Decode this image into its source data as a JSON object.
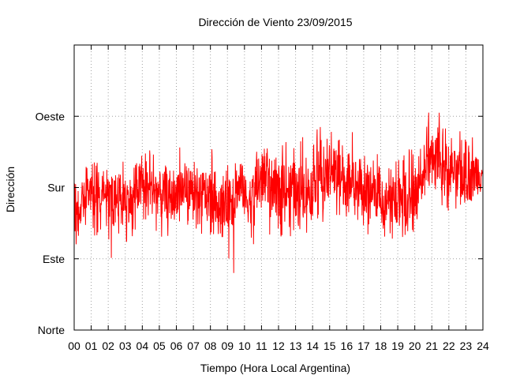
{
  "chart_data": {
    "type": "line",
    "title": "Dirección de Viento 23/09/2015",
    "xlabel": "Tiempo (Hora Local Argentina)",
    "ylabel": "Dirección",
    "x_ticks": [
      "00",
      "01",
      "02",
      "03",
      "04",
      "05",
      "06",
      "07",
      "08",
      "09",
      "10",
      "11",
      "12",
      "13",
      "14",
      "15",
      "16",
      "17",
      "18",
      "19",
      "20",
      "21",
      "22",
      "23",
      "24"
    ],
    "xlim": [
      0,
      24
    ],
    "y_ticks": [
      {
        "label": "Norte",
        "value": 0
      },
      {
        "label": "Este",
        "value": 90
      },
      {
        "label": "Sur",
        "value": 180
      },
      {
        "label": "Oeste",
        "value": 270
      }
    ],
    "ylim": [
      0,
      360
    ],
    "grid": true,
    "series_color": "#ff0000",
    "series": [
      {
        "x": [
          0.0,
          0.5,
          1.0,
          1.5,
          2.0,
          2.5,
          3.0,
          3.5,
          4.0,
          4.5,
          5.0,
          5.5,
          6.0,
          6.5,
          7.0,
          7.5,
          8.0,
          8.5,
          9.0,
          9.5,
          10.0,
          10.5,
          11.0,
          11.5,
          12.0,
          12.5,
          13.0,
          13.5,
          14.0,
          14.5,
          15.0,
          15.5,
          16.0,
          16.5,
          17.0,
          17.5,
          18.0,
          18.5,
          19.0,
          19.5,
          20.0,
          20.5,
          21.0,
          21.5,
          22.0,
          22.5,
          23.0,
          23.5
        ],
        "y": [
          150,
          170,
          168,
          172,
          160,
          170,
          165,
          180,
          185,
          175,
          170,
          165,
          178,
          180,
          168,
          172,
          170,
          160,
          170,
          180,
          165,
          180,
          190,
          175,
          185,
          180,
          175,
          178,
          195,
          185,
          200,
          190,
          195,
          185,
          170,
          180,
          160,
          165,
          172,
          165,
          175,
          210,
          220,
          205,
          200,
          195,
          190,
          200
        ],
        "low": [
          100,
          125,
          115,
          110,
          85,
          120,
          110,
          118,
          120,
          120,
          110,
          118,
          120,
          125,
          115,
          115,
          115,
          110,
          70,
          120,
          110,
          105,
          120,
          125,
          118,
          115,
          125,
          120,
          135,
          130,
          130,
          130,
          140,
          125,
          115,
          130,
          110,
          105,
          115,
          115,
          120,
          160,
          165,
          150,
          150,
          145,
          145,
          150
        ],
        "high": [
          195,
          210,
          215,
          205,
          205,
          220,
          215,
          235,
          240,
          225,
          220,
          215,
          235,
          225,
          220,
          230,
          230,
          215,
          215,
          225,
          220,
          230,
          230,
          225,
          240,
          235,
          245,
          240,
          260,
          245,
          255,
          250,
          250,
          245,
          225,
          230,
          215,
          215,
          225,
          230,
          235,
          275,
          275,
          255,
          250,
          255,
          245,
          255
        ]
      }
    ]
  }
}
